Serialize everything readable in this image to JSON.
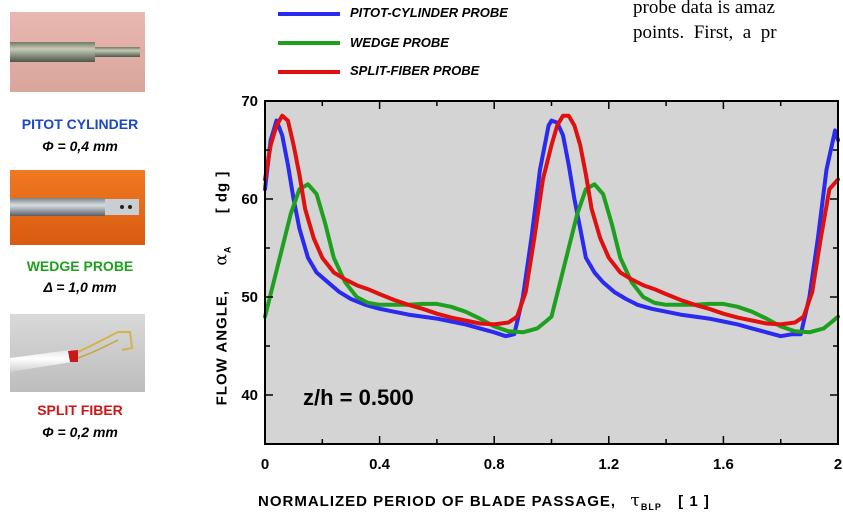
{
  "header_text": {
    "line1": "probe data is amaz",
    "line2": "points.  First,  a  pr"
  },
  "probes": [
    {
      "name": "PITOT CYLINDER",
      "dimension": "Φ = 0,4 mm",
      "color": "#1a46c8",
      "photo": "pitot-cylinder-photo"
    },
    {
      "name": "WEDGE  PROBE",
      "dimension": "Δ = 1,0 mm",
      "color": "#1ea01e",
      "photo": "wedge-probe-photo"
    },
    {
      "name": "SPLIT  FIBER",
      "dimension": "Φ = 0,2 mm",
      "color": "#d21414",
      "photo": "split-fiber-photo"
    }
  ],
  "legend": [
    {
      "label": "PITOT-CYLINDER PROBE",
      "color": "#2a2af0"
    },
    {
      "label": "WEDGE PROBE",
      "color": "#1ea01e"
    },
    {
      "label": "SPLIT-FIBER PROBE",
      "color": "#e01010"
    }
  ],
  "axis_labels": {
    "y_main": "FLOW ANGLE,",
    "y_symbol": "α",
    "y_sub": "A",
    "y_unit": "[ dg ]",
    "x_main": "NORMALIZED PERIOD OF BLADE PASSAGE,",
    "x_symbol": "τ",
    "x_sub": "BLP",
    "x_unit": "[ 1 ]"
  },
  "annotation": "z/h = 0.500",
  "chart_data": {
    "type": "line",
    "xlim": [
      0,
      2
    ],
    "ylim": [
      35,
      70
    ],
    "x_ticks": [
      "0",
      "0.4",
      "0.8",
      "1.2",
      "1.6",
      "2"
    ],
    "x_tick_values": [
      0,
      0.4,
      0.8,
      1.2,
      1.6,
      2.0
    ],
    "y_ticks": [
      "40",
      "50",
      "60",
      "70"
    ],
    "y_tick_values": [
      40,
      50,
      60,
      70
    ],
    "background": "#d4d4d4",
    "series": [
      {
        "name": "PITOT-CYLINDER PROBE",
        "color": "#2a2af0",
        "x": [
          0.0,
          0.02,
          0.04,
          0.06,
          0.08,
          0.1,
          0.12,
          0.15,
          0.18,
          0.22,
          0.26,
          0.3,
          0.35,
          0.4,
          0.45,
          0.5,
          0.55,
          0.6,
          0.65,
          0.7,
          0.75,
          0.8,
          0.84,
          0.87,
          0.9,
          0.93,
          0.96,
          0.99,
          1.0,
          1.02,
          1.04,
          1.06,
          1.08,
          1.1,
          1.12,
          1.15,
          1.18,
          1.22,
          1.26,
          1.3,
          1.35,
          1.4,
          1.45,
          1.5,
          1.55,
          1.6,
          1.65,
          1.7,
          1.75,
          1.8,
          1.84,
          1.87,
          1.9,
          1.93,
          1.96,
          1.99,
          2.0
        ],
        "y": [
          61.0,
          66.0,
          68.0,
          66.5,
          63.5,
          60.0,
          57.0,
          54.0,
          52.5,
          51.5,
          50.5,
          49.8,
          49.2,
          48.8,
          48.5,
          48.2,
          48.0,
          47.8,
          47.5,
          47.2,
          46.8,
          46.4,
          46.0,
          46.2,
          50.0,
          56.0,
          63.0,
          67.5,
          68.0,
          67.8,
          66.5,
          63.5,
          60.0,
          57.0,
          54.0,
          52.5,
          51.5,
          50.5,
          49.8,
          49.2,
          48.8,
          48.5,
          48.2,
          48.0,
          47.8,
          47.5,
          47.2,
          46.8,
          46.4,
          46.0,
          46.2,
          46.2,
          50.0,
          56.0,
          63.0,
          67.0,
          66.0
        ]
      },
      {
        "name": "WEDGE PROBE",
        "color": "#1ea01e",
        "x": [
          0.0,
          0.03,
          0.06,
          0.09,
          0.12,
          0.15,
          0.18,
          0.21,
          0.24,
          0.28,
          0.32,
          0.36,
          0.4,
          0.45,
          0.5,
          0.55,
          0.6,
          0.65,
          0.7,
          0.75,
          0.8,
          0.85,
          0.9,
          0.95,
          0.98,
          1.0,
          1.03,
          1.06,
          1.09,
          1.12,
          1.15,
          1.18,
          1.21,
          1.24,
          1.28,
          1.32,
          1.36,
          1.4,
          1.45,
          1.5,
          1.55,
          1.6,
          1.65,
          1.7,
          1.75,
          1.8,
          1.85,
          1.9,
          1.95,
          1.98,
          2.0
        ],
        "y": [
          48.0,
          51.5,
          55.0,
          58.5,
          61.0,
          61.5,
          60.5,
          57.5,
          54.0,
          51.5,
          50.0,
          49.4,
          49.2,
          49.2,
          49.2,
          49.3,
          49.3,
          49.0,
          48.5,
          47.8,
          47.0,
          46.5,
          46.4,
          46.8,
          47.5,
          48.0,
          51.5,
          55.0,
          58.5,
          61.0,
          61.5,
          60.5,
          57.5,
          54.0,
          51.5,
          50.0,
          49.4,
          49.2,
          49.2,
          49.2,
          49.3,
          49.3,
          49.0,
          48.5,
          47.8,
          47.0,
          46.5,
          46.4,
          46.8,
          47.5,
          48.0
        ]
      },
      {
        "name": "SPLIT-FIBER PROBE",
        "color": "#e01010",
        "x": [
          0.0,
          0.02,
          0.04,
          0.06,
          0.08,
          0.1,
          0.12,
          0.14,
          0.17,
          0.2,
          0.24,
          0.28,
          0.32,
          0.36,
          0.4,
          0.45,
          0.5,
          0.55,
          0.6,
          0.65,
          0.7,
          0.75,
          0.8,
          0.85,
          0.88,
          0.91,
          0.94,
          0.97,
          1.0,
          1.02,
          1.04,
          1.06,
          1.08,
          1.1,
          1.12,
          1.14,
          1.17,
          1.2,
          1.24,
          1.28,
          1.32,
          1.36,
          1.4,
          1.45,
          1.5,
          1.55,
          1.6,
          1.65,
          1.7,
          1.75,
          1.8,
          1.85,
          1.88,
          1.91,
          1.94,
          1.97,
          2.0
        ],
        "y": [
          62.0,
          65.5,
          67.5,
          68.5,
          68.0,
          65.5,
          62.5,
          59.0,
          56.0,
          54.0,
          52.5,
          51.8,
          51.2,
          50.8,
          50.3,
          49.7,
          49.2,
          48.8,
          48.3,
          47.9,
          47.6,
          47.3,
          47.2,
          47.4,
          48.0,
          50.5,
          56.0,
          62.0,
          65.5,
          67.5,
          68.5,
          68.5,
          67.5,
          65.5,
          62.5,
          59.0,
          56.0,
          54.0,
          52.5,
          51.8,
          51.2,
          50.8,
          50.3,
          49.7,
          49.2,
          48.8,
          48.3,
          47.9,
          47.6,
          47.3,
          47.2,
          47.4,
          48.0,
          50.5,
          56.0,
          61.0,
          62.0
        ]
      }
    ]
  }
}
